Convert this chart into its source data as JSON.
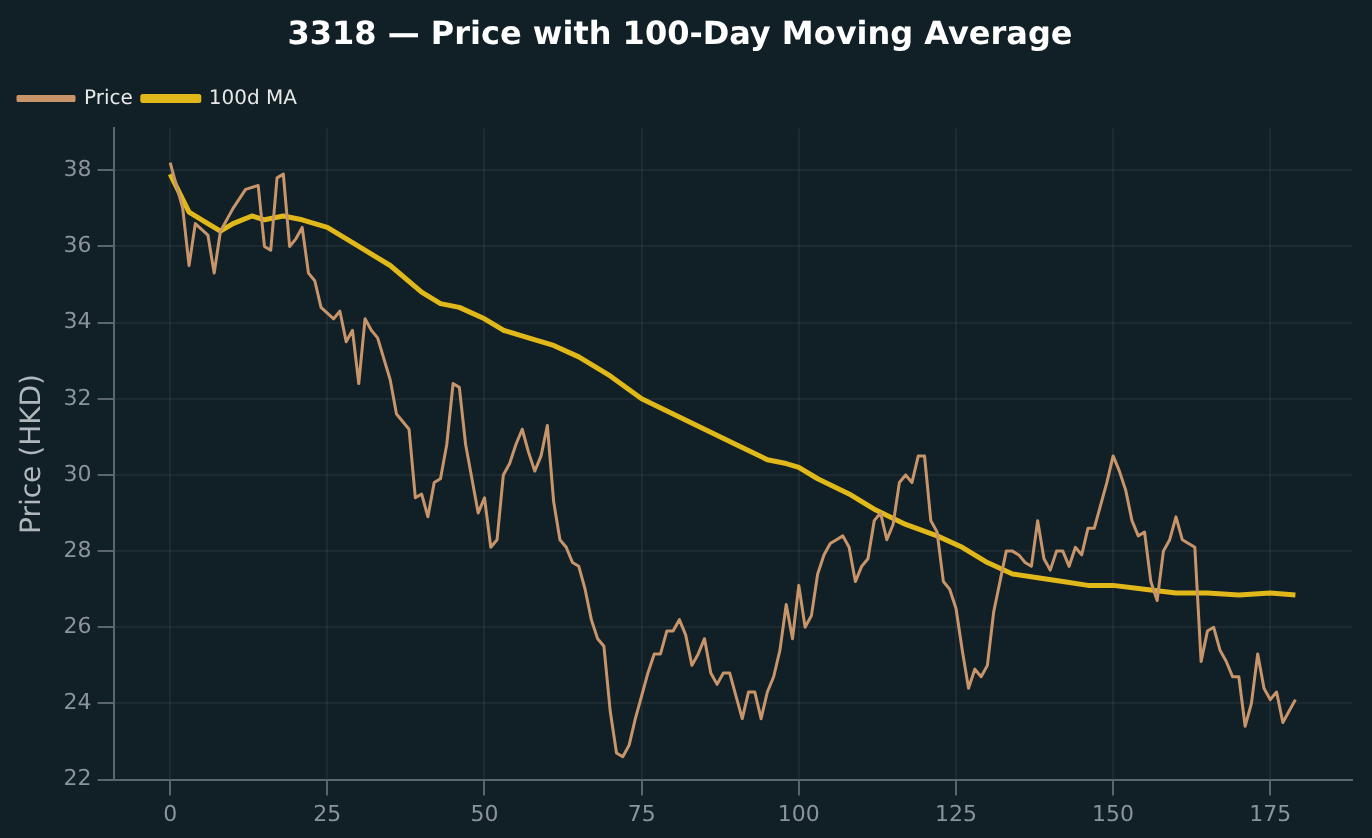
{
  "chart_data": {
    "type": "line",
    "title": "3318 — Price with 100-Day Moving Average",
    "ylabel": "Price (HKD)",
    "xlim": [
      -9,
      188
    ],
    "xticks": [
      0,
      25,
      50,
      75,
      100,
      125,
      150,
      175
    ],
    "ylim": [
      22,
      39.1
    ],
    "yticks": [
      22,
      24,
      26,
      28,
      30,
      32,
      34,
      36,
      38
    ],
    "grid": true,
    "legend": "top left",
    "line_style": "solid",
    "marker": "none",
    "series": [
      {
        "name": "Price",
        "color": "#c8956a",
        "x": [
          0,
          2,
          3,
          4,
          6,
          7,
          8,
          10,
          12,
          14,
          15,
          16,
          17,
          18,
          19,
          20,
          21,
          22,
          23,
          24,
          26,
          27,
          28,
          29,
          30,
          31,
          32,
          33,
          35,
          36,
          38,
          39,
          40,
          41,
          42,
          43,
          44,
          45,
          46,
          47,
          48,
          49,
          50,
          51,
          52,
          53,
          54,
          55,
          56,
          57,
          58,
          59,
          60,
          61,
          62,
          63,
          64,
          65,
          66,
          67,
          68,
          69,
          70,
          71,
          72,
          73,
          74,
          75,
          76,
          77,
          78,
          79,
          80,
          81,
          82,
          83,
          84,
          85,
          86,
          87,
          88,
          89,
          90,
          91,
          92,
          93,
          94,
          95,
          96,
          97,
          98,
          99,
          100,
          101,
          102,
          103,
          104,
          105,
          106,
          107,
          108,
          109,
          110,
          111,
          112,
          113,
          114,
          115,
          116,
          117,
          118,
          119,
          120,
          121,
          122,
          123,
          124,
          125,
          126,
          127,
          128,
          129,
          130,
          131,
          132,
          133,
          134,
          135,
          136,
          137,
          138,
          139,
          140,
          141,
          142,
          143,
          144,
          145,
          146,
          147,
          148,
          149,
          150,
          151,
          152,
          153,
          154,
          155,
          156,
          157,
          158,
          159,
          160,
          161,
          162,
          163,
          164,
          165,
          166,
          167,
          168,
          169,
          170,
          171,
          172,
          173,
          174,
          175,
          176,
          177,
          178,
          179
        ],
        "values": [
          38.2,
          37.0,
          35.5,
          36.6,
          36.3,
          35.3,
          36.4,
          37.0,
          37.5,
          37.6,
          36.0,
          35.9,
          37.8,
          37.9,
          36.0,
          36.2,
          36.5,
          35.3,
          35.1,
          34.4,
          34.1,
          34.3,
          33.5,
          33.8,
          32.4,
          34.1,
          33.8,
          33.6,
          32.5,
          31.6,
          31.2,
          29.4,
          29.5,
          28.9,
          29.8,
          29.9,
          30.8,
          32.4,
          32.3,
          30.8,
          29.9,
          29.0,
          29.4,
          28.1,
          28.3,
          30.0,
          30.3,
          30.8,
          31.2,
          30.6,
          30.1,
          30.5,
          31.3,
          29.3,
          28.3,
          28.1,
          27.7,
          27.6,
          27.0,
          26.2,
          25.7,
          25.5,
          23.8,
          22.7,
          22.6,
          22.9,
          23.6,
          24.2,
          24.8,
          25.3,
          25.3,
          25.9,
          25.9,
          26.2,
          25.8,
          25.0,
          25.3,
          25.7,
          24.8,
          24.5,
          24.8,
          24.8,
          24.2,
          23.6,
          24.3,
          24.3,
          23.6,
          24.3,
          24.7,
          25.4,
          26.6,
          25.7,
          27.1,
          26.0,
          26.3,
          27.4,
          27.9,
          28.2,
          28.3,
          28.4,
          28.1,
          27.2,
          27.6,
          27.8,
          28.8,
          29.0,
          28.3,
          28.7,
          29.8,
          30.0,
          29.8,
          30.5,
          30.5,
          28.8,
          28.5,
          27.2,
          27.0,
          26.5,
          25.4,
          24.4,
          24.9,
          24.7,
          25.0,
          26.4,
          27.2,
          28.0,
          28.0,
          27.9,
          27.7,
          27.6,
          28.8,
          27.8,
          27.5,
          28.0,
          28.0,
          27.6,
          28.1,
          27.9,
          28.6,
          28.6,
          29.2,
          29.8,
          30.5,
          30.1,
          29.6,
          28.8,
          28.4,
          28.5,
          27.2,
          26.7,
          28.0,
          28.3,
          28.9,
          28.3,
          28.2,
          28.1,
          25.1,
          25.9,
          26.0,
          25.4,
          25.1,
          24.7,
          24.7,
          23.4,
          24.0,
          25.3,
          24.4,
          24.1,
          24.3,
          23.5,
          23.8,
          24.1
        ]
      },
      {
        "name": "100d MA",
        "color": "#e0b81a",
        "x": [
          0,
          3,
          6,
          8,
          10,
          13,
          15,
          18,
          21,
          25,
          30,
          35,
          40,
          43,
          46,
          50,
          53,
          57,
          61,
          65,
          70,
          75,
          80,
          85,
          90,
          95,
          98,
          100,
          103,
          108,
          112,
          117,
          122,
          126,
          130,
          134,
          138,
          142,
          146,
          150,
          155,
          160,
          165,
          170,
          175,
          179
        ],
        "values": [
          37.9,
          36.9,
          36.6,
          36.4,
          36.6,
          36.8,
          36.7,
          36.8,
          36.7,
          36.5,
          36.0,
          35.5,
          34.8,
          34.5,
          34.4,
          34.1,
          33.8,
          33.6,
          33.4,
          33.1,
          32.6,
          32.0,
          31.6,
          31.2,
          30.8,
          30.4,
          30.3,
          30.2,
          29.9,
          29.5,
          29.1,
          28.7,
          28.4,
          28.1,
          27.7,
          27.4,
          27.3,
          27.2,
          27.1,
          27.1,
          27.0,
          26.9,
          26.9,
          26.85,
          26.9,
          26.85
        ]
      }
    ]
  }
}
